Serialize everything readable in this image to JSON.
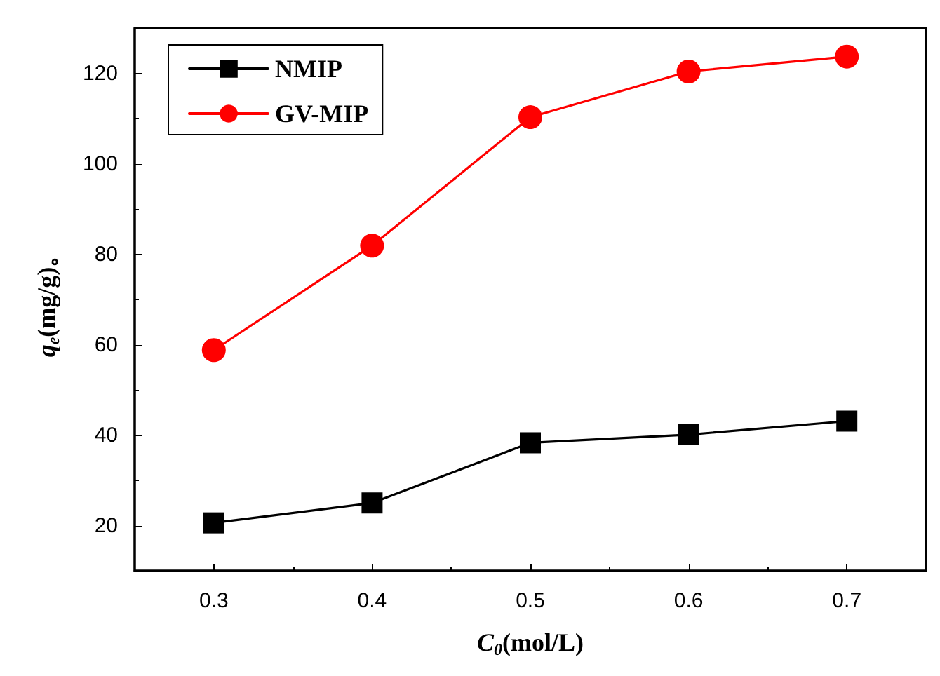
{
  "chart_data": {
    "type": "line",
    "xlabel": "C$_{0}$(mol/L)",
    "ylabel": "q$_{e}$(mg/g)。",
    "x": [
      0.3,
      0.4,
      0.5,
      0.6,
      0.7
    ],
    "series": [
      {
        "name": "NMIP",
        "color": "#000000",
        "marker": "square",
        "values": [
          20.6,
          25.0,
          38.3,
          40.1,
          43.1
        ]
      },
      {
        "name": "GV-MIP",
        "color": "#ff0000",
        "marker": "circle",
        "values": [
          58.8,
          81.9,
          110.3,
          120.4,
          123.7
        ]
      }
    ],
    "xlim": [
      0.25,
      0.75
    ],
    "xticks": [
      0.3,
      0.4,
      0.5,
      0.6,
      0.7
    ],
    "ylim": [
      10,
      130
    ],
    "yticks": [
      20,
      40,
      60,
      80,
      100,
      120
    ],
    "grid": false,
    "legend": "top left",
    "line_style": "solid"
  }
}
